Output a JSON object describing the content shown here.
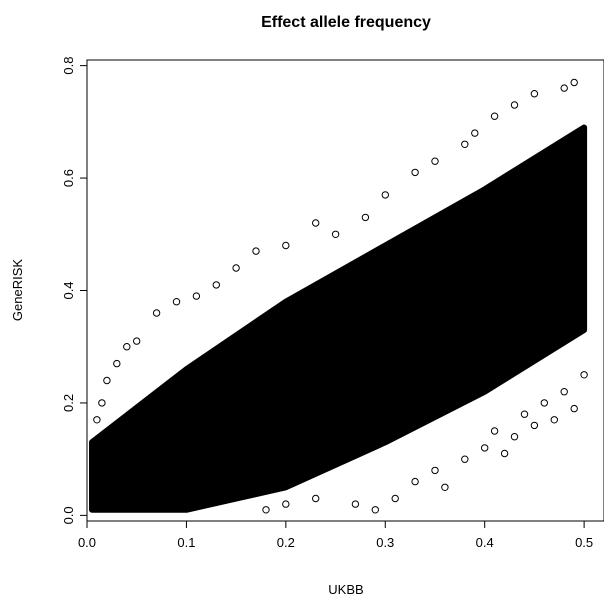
{
  "chart_data": {
    "type": "scatter",
    "title": "Effect allele frequency",
    "xlabel": "UKBB",
    "ylabel": "GeneRISK",
    "xlim": [
      0.0,
      0.52
    ],
    "ylim": [
      -0.01,
      0.81
    ],
    "x_ticks": [
      0.0,
      0.1,
      0.2,
      0.3,
      0.4,
      0.5
    ],
    "x_tick_labels": [
      "0.0",
      "0.1",
      "0.2",
      "0.3",
      "0.4",
      "0.5"
    ],
    "y_ticks": [
      0.0,
      0.2,
      0.4,
      0.6,
      0.8
    ],
    "y_tick_labels": [
      "0.0",
      "0.2",
      "0.4",
      "0.6",
      "0.8"
    ],
    "grid": false,
    "marker": "open-circle",
    "point_color": "#000000",
    "dense_band": {
      "x_range": [
        0.005,
        0.5
      ],
      "lower_edge": [
        [
          0.005,
          0.01
        ],
        [
          0.1,
          0.01
        ],
        [
          0.2,
          0.05
        ],
        [
          0.3,
          0.13
        ],
        [
          0.4,
          0.22
        ],
        [
          0.5,
          0.33
        ]
      ],
      "upper_edge": [
        [
          0.005,
          0.13
        ],
        [
          0.1,
          0.26
        ],
        [
          0.2,
          0.38
        ],
        [
          0.3,
          0.48
        ],
        [
          0.4,
          0.58
        ],
        [
          0.5,
          0.69
        ]
      ]
    },
    "outliers": [
      {
        "x": 0.49,
        "y": 0.77
      },
      {
        "x": 0.48,
        "y": 0.76
      },
      {
        "x": 0.45,
        "y": 0.75
      },
      {
        "x": 0.43,
        "y": 0.73
      },
      {
        "x": 0.41,
        "y": 0.71
      },
      {
        "x": 0.39,
        "y": 0.68
      },
      {
        "x": 0.38,
        "y": 0.66
      },
      {
        "x": 0.35,
        "y": 0.63
      },
      {
        "x": 0.33,
        "y": 0.61
      },
      {
        "x": 0.3,
        "y": 0.57
      },
      {
        "x": 0.28,
        "y": 0.53
      },
      {
        "x": 0.25,
        "y": 0.5
      },
      {
        "x": 0.23,
        "y": 0.52
      },
      {
        "x": 0.2,
        "y": 0.48
      },
      {
        "x": 0.17,
        "y": 0.47
      },
      {
        "x": 0.15,
        "y": 0.44
      },
      {
        "x": 0.13,
        "y": 0.41
      },
      {
        "x": 0.11,
        "y": 0.39
      },
      {
        "x": 0.09,
        "y": 0.38
      },
      {
        "x": 0.07,
        "y": 0.36
      },
      {
        "x": 0.05,
        "y": 0.31
      },
      {
        "x": 0.04,
        "y": 0.3
      },
      {
        "x": 0.03,
        "y": 0.27
      },
      {
        "x": 0.02,
        "y": 0.24
      },
      {
        "x": 0.015,
        "y": 0.2
      },
      {
        "x": 0.01,
        "y": 0.17
      },
      {
        "x": 0.27,
        "y": 0.02
      },
      {
        "x": 0.29,
        "y": 0.01
      },
      {
        "x": 0.31,
        "y": 0.03
      },
      {
        "x": 0.33,
        "y": 0.06
      },
      {
        "x": 0.35,
        "y": 0.08
      },
      {
        "x": 0.36,
        "y": 0.05
      },
      {
        "x": 0.38,
        "y": 0.1
      },
      {
        "x": 0.4,
        "y": 0.12
      },
      {
        "x": 0.41,
        "y": 0.15
      },
      {
        "x": 0.42,
        "y": 0.11
      },
      {
        "x": 0.44,
        "y": 0.18
      },
      {
        "x": 0.46,
        "y": 0.2
      },
      {
        "x": 0.47,
        "y": 0.17
      },
      {
        "x": 0.48,
        "y": 0.22
      },
      {
        "x": 0.49,
        "y": 0.19
      },
      {
        "x": 0.5,
        "y": 0.25
      },
      {
        "x": 0.2,
        "y": 0.02
      },
      {
        "x": 0.23,
        "y": 0.03
      },
      {
        "x": 0.18,
        "y": 0.01
      },
      {
        "x": 0.43,
        "y": 0.14
      },
      {
        "x": 0.45,
        "y": 0.16
      }
    ]
  }
}
